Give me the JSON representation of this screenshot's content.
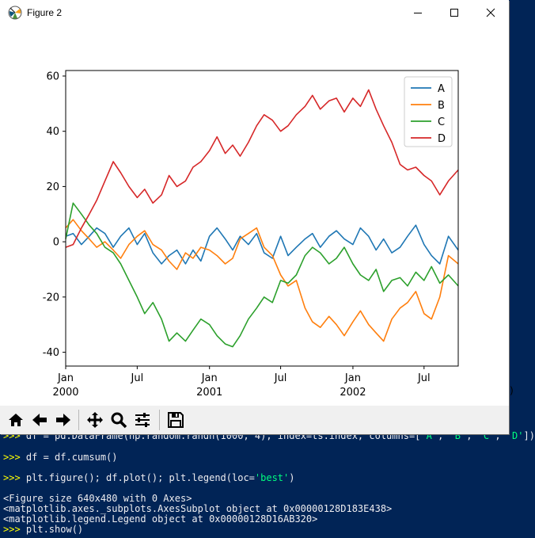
{
  "window": {
    "title": "Figure 2",
    "min_icon": "minimize-icon",
    "max_icon": "maximize-icon",
    "close_icon": "close-icon",
    "edge_glyph": ")"
  },
  "toolbar": {
    "buttons": [
      {
        "name": "home-button",
        "icon": "home-icon"
      },
      {
        "name": "back-button",
        "icon": "arrow-left-icon"
      },
      {
        "name": "forward-button",
        "icon": "arrow-right-icon"
      },
      {
        "name": "pan-button",
        "icon": "move-icon"
      },
      {
        "name": "zoom-button",
        "icon": "magnifier-icon"
      },
      {
        "name": "configure-subplots-button",
        "icon": "sliders-icon"
      },
      {
        "name": "save-button",
        "icon": "floppy-icon"
      }
    ]
  },
  "console": {
    "lines": [
      {
        "prompt": ">>> ",
        "segments": [
          {
            "t": "df = pd.DataFrame(np.random.randn(1000, 4), index=ts.index, columns=["
          },
          {
            "t": "'A'",
            "s": 1
          },
          {
            "t": ", "
          },
          {
            "t": "'B'",
            "s": 1
          },
          {
            "t": ", "
          },
          {
            "t": "'C'",
            "s": 1
          },
          {
            "t": ", "
          },
          {
            "t": "'D'",
            "s": 1
          },
          {
            "t": "])"
          }
        ]
      },
      {
        "prompt": ">>> ",
        "segments": [
          {
            "t": "df = df.cumsum()"
          }
        ]
      },
      {
        "prompt": ">>> ",
        "segments": [
          {
            "t": "plt.figure(); df.plot(); plt.legend(loc="
          },
          {
            "t": "'best'",
            "s": 1
          },
          {
            "t": ")"
          }
        ]
      },
      {
        "prompt": "",
        "segments": [
          {
            "t": "<Figure size 640x480 with 0 Axes>"
          }
        ]
      },
      {
        "prompt": "",
        "segments": [
          {
            "t": "<matplotlib.axes._subplots.AxesSubplot object at 0x00000128D183E438>"
          }
        ]
      },
      {
        "prompt": "",
        "segments": [
          {
            "t": "<matplotlib.legend.Legend object at 0x00000128D16AB320>"
          }
        ]
      },
      {
        "prompt": ">>> ",
        "segments": [
          {
            "t": "plt.show()"
          }
        ]
      }
    ]
  },
  "chart_data": {
    "type": "line",
    "x_range": [
      "2000-01-01",
      "2002-09-26"
    ],
    "ylim": [
      -45,
      62
    ],
    "yticks": [
      -40,
      -20,
      0,
      20,
      40,
      60
    ],
    "xticks": [
      {
        "date": "2000-01-01",
        "label": "Jan",
        "year": "2000"
      },
      {
        "date": "2000-07-01",
        "label": "Jul",
        "year": ""
      },
      {
        "date": "2001-01-01",
        "label": "Jan",
        "year": "2001"
      },
      {
        "date": "2001-07-01",
        "label": "Jul",
        "year": ""
      },
      {
        "date": "2002-01-01",
        "label": "Jan",
        "year": "2002"
      },
      {
        "date": "2002-07-01",
        "label": "Jul",
        "year": ""
      }
    ],
    "grid": false,
    "legend_placement": "upper-right",
    "series": [
      {
        "name": "A",
        "color": "#1f77b4",
        "x": [
          "2000-01-01",
          "2000-01-20",
          "2000-02-10",
          "2000-03-01",
          "2000-03-20",
          "2000-04-10",
          "2000-05-01",
          "2000-05-20",
          "2000-06-10",
          "2000-07-01",
          "2000-07-20",
          "2000-08-10",
          "2000-09-01",
          "2000-09-20",
          "2000-10-10",
          "2000-11-01",
          "2000-11-20",
          "2000-12-10",
          "2001-01-01",
          "2001-01-20",
          "2001-02-10",
          "2001-03-01",
          "2001-03-20",
          "2001-04-10",
          "2001-05-01",
          "2001-05-20",
          "2001-06-10",
          "2001-07-01",
          "2001-07-20",
          "2001-08-10",
          "2001-09-01",
          "2001-09-20",
          "2001-10-10",
          "2001-11-01",
          "2001-11-20",
          "2001-12-10",
          "2002-01-01",
          "2002-01-20",
          "2002-02-10",
          "2002-03-01",
          "2002-03-20",
          "2002-04-10",
          "2002-05-01",
          "2002-05-20",
          "2002-06-10",
          "2002-07-01",
          "2002-07-20",
          "2002-08-10",
          "2002-09-01",
          "2002-09-26"
        ],
        "values": [
          2,
          3,
          -1,
          2,
          5,
          3,
          -2,
          2,
          5,
          -1,
          3,
          -4,
          -8,
          -5,
          -3,
          -8,
          -3,
          -7,
          2,
          5,
          1,
          -3,
          2,
          -1,
          3,
          -4,
          -6,
          2,
          -5,
          -2,
          1,
          3,
          -2,
          2,
          4,
          1,
          -1,
          5,
          2,
          -3,
          1,
          -4,
          -2,
          2,
          6,
          -1,
          -5,
          -8,
          2,
          -3
        ]
      },
      {
        "name": "B",
        "color": "#ff7f0e",
        "x": [
          "2000-01-01",
          "2000-01-20",
          "2000-02-10",
          "2000-03-01",
          "2000-03-20",
          "2000-04-10",
          "2000-05-01",
          "2000-05-20",
          "2000-06-10",
          "2000-07-01",
          "2000-07-20",
          "2000-08-10",
          "2000-09-01",
          "2000-09-20",
          "2000-10-10",
          "2000-11-01",
          "2000-11-20",
          "2000-12-10",
          "2001-01-01",
          "2001-01-20",
          "2001-02-10",
          "2001-03-01",
          "2001-03-20",
          "2001-04-10",
          "2001-05-01",
          "2001-05-20",
          "2001-06-10",
          "2001-07-01",
          "2001-07-20",
          "2001-08-10",
          "2001-09-01",
          "2001-09-20",
          "2001-10-10",
          "2001-11-01",
          "2001-11-20",
          "2001-12-10",
          "2002-01-01",
          "2002-01-20",
          "2002-02-10",
          "2002-03-01",
          "2002-03-20",
          "2002-04-10",
          "2002-05-01",
          "2002-05-20",
          "2002-06-10",
          "2002-07-01",
          "2002-07-20",
          "2002-08-10",
          "2002-09-01",
          "2002-09-26"
        ],
        "values": [
          5,
          8,
          4,
          1,
          -2,
          0,
          -3,
          -6,
          -1,
          2,
          4,
          -1,
          -3,
          -7,
          -10,
          -4,
          -6,
          -2,
          -3,
          -5,
          -8,
          -6,
          1,
          3,
          5,
          -2,
          -5,
          -12,
          -16,
          -14,
          -24,
          -29,
          -31,
          -27,
          -30,
          -34,
          -29,
          -25,
          -30,
          -33,
          -36,
          -28,
          -24,
          -22,
          -18,
          -26,
          -28,
          -20,
          -5,
          -8
        ]
      },
      {
        "name": "C",
        "color": "#2ca02c",
        "x": [
          "2000-01-01",
          "2000-01-20",
          "2000-02-10",
          "2000-03-01",
          "2000-03-20",
          "2000-04-10",
          "2000-05-01",
          "2000-05-20",
          "2000-06-10",
          "2000-07-01",
          "2000-07-20",
          "2000-08-10",
          "2000-09-01",
          "2000-09-20",
          "2000-10-10",
          "2000-11-01",
          "2000-11-20",
          "2000-12-10",
          "2001-01-01",
          "2001-01-20",
          "2001-02-10",
          "2001-03-01",
          "2001-03-20",
          "2001-04-10",
          "2001-05-01",
          "2001-05-20",
          "2001-06-10",
          "2001-07-01",
          "2001-07-20",
          "2001-08-10",
          "2001-09-01",
          "2001-09-20",
          "2001-10-10",
          "2001-11-01",
          "2001-11-20",
          "2001-12-10",
          "2002-01-01",
          "2002-01-20",
          "2002-02-10",
          "2002-03-01",
          "2002-03-20",
          "2002-04-10",
          "2002-05-01",
          "2002-05-20",
          "2002-06-10",
          "2002-07-01",
          "2002-07-20",
          "2002-08-10",
          "2002-09-01",
          "2002-09-26"
        ],
        "values": [
          1,
          14,
          10,
          6,
          3,
          -2,
          -4,
          -8,
          -14,
          -20,
          -26,
          -22,
          -28,
          -36,
          -33,
          -36,
          -32,
          -28,
          -30,
          -34,
          -37,
          -38,
          -34,
          -28,
          -24,
          -20,
          -22,
          -14,
          -15,
          -12,
          -5,
          -2,
          -4,
          -8,
          -6,
          -2,
          -8,
          -12,
          -14,
          -10,
          -18,
          -14,
          -13,
          -16,
          -11,
          -14,
          -9,
          -15,
          -12,
          -16
        ]
      },
      {
        "name": "D",
        "color": "#d62728",
        "x": [
          "2000-01-01",
          "2000-01-20",
          "2000-02-10",
          "2000-03-01",
          "2000-03-20",
          "2000-04-10",
          "2000-05-01",
          "2000-05-20",
          "2000-06-10",
          "2000-07-01",
          "2000-07-20",
          "2000-08-10",
          "2000-09-01",
          "2000-09-20",
          "2000-10-10",
          "2000-11-01",
          "2000-11-20",
          "2000-12-10",
          "2001-01-01",
          "2001-01-20",
          "2001-02-10",
          "2001-03-01",
          "2001-03-20",
          "2001-04-10",
          "2001-05-01",
          "2001-05-20",
          "2001-06-10",
          "2001-07-01",
          "2001-07-20",
          "2001-08-10",
          "2001-09-01",
          "2001-09-20",
          "2001-10-10",
          "2001-11-01",
          "2001-11-20",
          "2001-12-10",
          "2002-01-01",
          "2002-01-20",
          "2002-02-10",
          "2002-03-01",
          "2002-03-20",
          "2002-04-10",
          "2002-05-01",
          "2002-05-20",
          "2002-06-10",
          "2002-07-01",
          "2002-07-20",
          "2002-08-10",
          "2002-09-01",
          "2002-09-26"
        ],
        "values": [
          -2,
          -1,
          5,
          10,
          15,
          22,
          29,
          25,
          20,
          16,
          19,
          14,
          17,
          24,
          20,
          22,
          27,
          29,
          33,
          38,
          32,
          35,
          31,
          36,
          42,
          46,
          44,
          40,
          42,
          46,
          49,
          53,
          48,
          51,
          52,
          47,
          52,
          49,
          55,
          48,
          42,
          36,
          28,
          26,
          27,
          24,
          22,
          17,
          22,
          26
        ]
      }
    ]
  }
}
